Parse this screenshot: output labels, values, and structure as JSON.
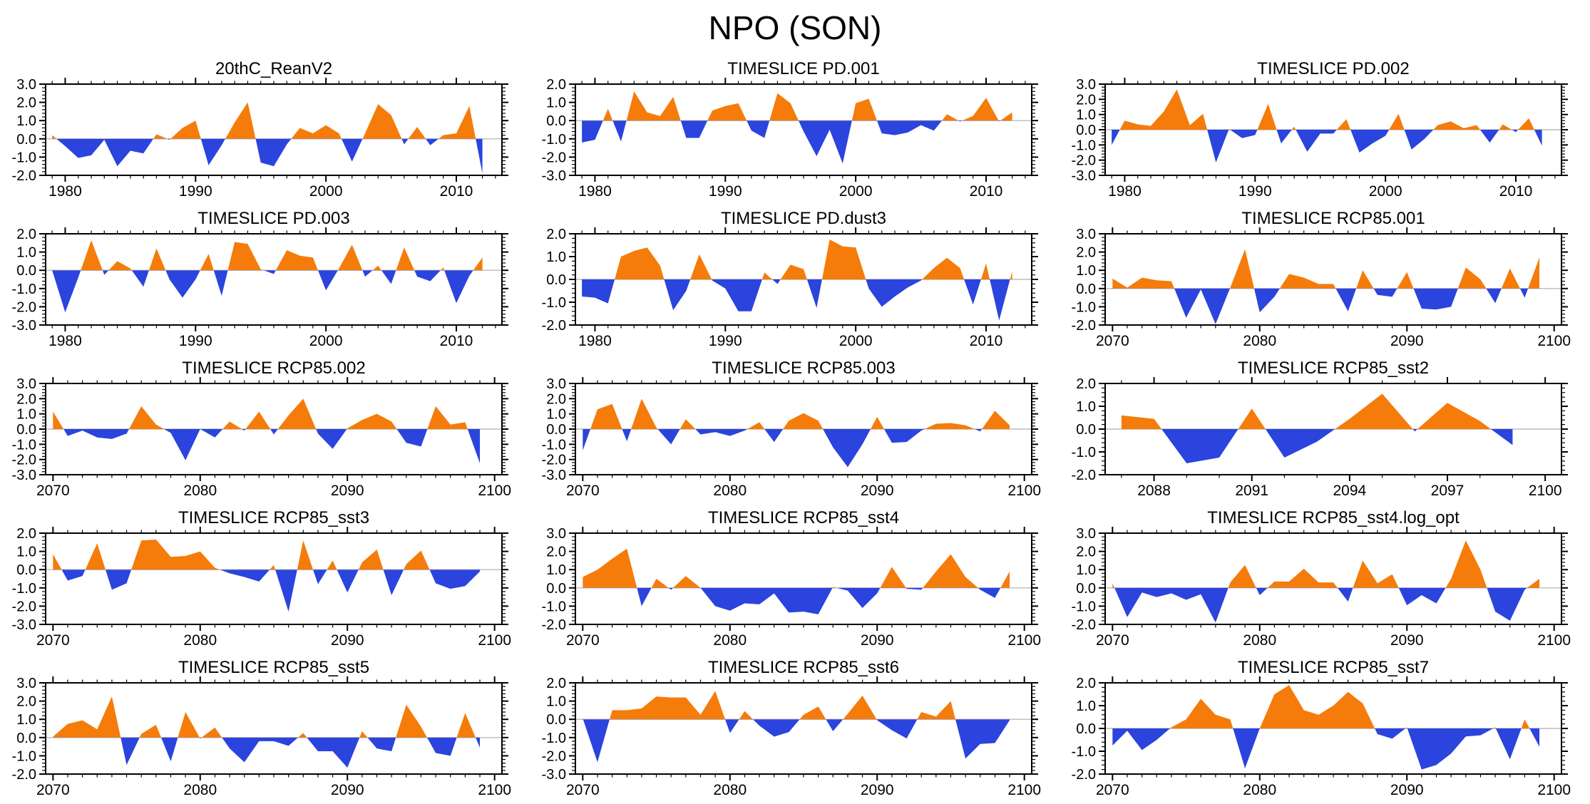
{
  "page_title": "NPO (SON)",
  "colors": {
    "positive_fill": "#F57C0A",
    "negative_fill": "#2A44DD",
    "zero_line": "#BBBBBB",
    "axis": "#000000"
  },
  "chart_data": [
    {
      "type": "area",
      "title": "20thC_ReanV2",
      "x_start": 1979,
      "x_step": 1,
      "xlim": [
        1978.5,
        2013.5
      ],
      "xticks": [
        1980,
        1990,
        2000,
        2010
      ],
      "ylim": [
        -2,
        3
      ],
      "ytick_step": 1,
      "y_minor_step": 0.2,
      "x_minor_step": 1,
      "values": [
        0.2,
        -0.4,
        -1.05,
        -0.9,
        -0.05,
        -1.5,
        -0.65,
        -0.8,
        0.25,
        -0.05,
        0.6,
        1.0,
        -1.45,
        -0.35,
        0.9,
        2.0,
        -1.3,
        -1.5,
        -0.3,
        0.6,
        0.3,
        0.75,
        0.3,
        -1.25,
        0.3,
        1.9,
        1.3,
        -0.3,
        0.65,
        -0.35,
        0.2,
        0.3,
        1.8,
        -1.9
      ]
    },
    {
      "type": "area",
      "title": "TIMESLICE PD.001",
      "x_start": 1979,
      "x_step": 1,
      "xlim": [
        1978.5,
        2013.5
      ],
      "xticks": [
        1980,
        1990,
        2000,
        2010
      ],
      "ylim": [
        -3,
        2
      ],
      "ytick_step": 1,
      "y_minor_step": 0.2,
      "x_minor_step": 1,
      "values": [
        -1.2,
        -1.05,
        0.65,
        -1.15,
        1.6,
        0.45,
        0.25,
        1.3,
        -0.95,
        -0.95,
        0.55,
        0.8,
        0.95,
        -0.55,
        -0.95,
        1.5,
        0.95,
        -0.6,
        -1.95,
        -0.5,
        -2.35,
        0.95,
        1.2,
        -0.7,
        -0.8,
        -0.65,
        -0.25,
        -0.55,
        0.35,
        -0.05,
        0.25,
        1.25,
        -0.05,
        0.45
      ]
    },
    {
      "type": "area",
      "title": "TIMESLICE PD.002",
      "x_start": 1979,
      "x_step": 1,
      "xlim": [
        1978.5,
        2013.5
      ],
      "xticks": [
        1980,
        1990,
        2000,
        2010
      ],
      "ylim": [
        -3,
        3
      ],
      "ytick_step": 1,
      "y_minor_step": 0.2,
      "x_minor_step": 1,
      "values": [
        -1.0,
        0.6,
        0.35,
        0.25,
        1.2,
        2.65,
        0.3,
        1.05,
        -2.15,
        0.05,
        -0.55,
        -0.35,
        1.7,
        -0.9,
        0.2,
        -1.45,
        -0.25,
        -0.25,
        0.7,
        -1.5,
        -0.9,
        -0.4,
        1.05,
        -1.3,
        -0.6,
        0.3,
        0.55,
        0.1,
        0.3,
        -0.85,
        0.35,
        -0.15,
        0.75,
        -1.05
      ]
    },
    {
      "type": "area",
      "title": "TIMESLICE PD.003",
      "x_start": 1979,
      "x_step": 1,
      "xlim": [
        1978.5,
        2013.5
      ],
      "xticks": [
        1980,
        1990,
        2000,
        2010
      ],
      "ylim": [
        -3,
        2
      ],
      "ytick_step": 1,
      "y_minor_step": 0.2,
      "x_minor_step": 1,
      "values": [
        0.0,
        -2.3,
        -0.4,
        1.65,
        -0.25,
        0.5,
        0.1,
        -0.9,
        1.2,
        -0.5,
        -1.5,
        -0.5,
        0.9,
        -1.4,
        1.55,
        1.45,
        0.05,
        -0.2,
        1.1,
        0.8,
        0.7,
        -1.1,
        0.1,
        1.4,
        -0.35,
        0.25,
        -0.75,
        1.25,
        -0.35,
        -0.6,
        0.15,
        -1.8,
        -0.3,
        0.7
      ]
    },
    {
      "type": "area",
      "title": "TIMESLICE PD.dust3",
      "x_start": 1979,
      "x_step": 1,
      "xlim": [
        1978.5,
        2013.5
      ],
      "xticks": [
        1980,
        1990,
        2000,
        2010
      ],
      "ylim": [
        -2,
        2
      ],
      "ytick_step": 1,
      "y_minor_step": 0.2,
      "x_minor_step": 1,
      "values": [
        -0.75,
        -0.8,
        -1.05,
        1.0,
        1.25,
        1.4,
        0.6,
        -1.35,
        -0.5,
        1.1,
        -0.05,
        -0.4,
        -1.4,
        -1.4,
        0.3,
        -0.2,
        0.65,
        0.45,
        -1.25,
        1.75,
        1.45,
        1.4,
        -0.4,
        -1.2,
        -0.75,
        -0.35,
        -0.05,
        0.5,
        0.95,
        0.5,
        -1.1,
        0.7,
        -1.8,
        0.35
      ]
    },
    {
      "type": "area",
      "title": "TIMESLICE RCP85.001",
      "x_start": 2070,
      "x_step": 1,
      "xlim": [
        2069.5,
        2100.5
      ],
      "xticks": [
        2070,
        2080,
        2090,
        2100
      ],
      "ylim": [
        -2,
        3
      ],
      "ytick_step": 1,
      "y_minor_step": 0.2,
      "x_minor_step": 1,
      "values": [
        0.55,
        0.05,
        0.6,
        0.45,
        0.4,
        -1.6,
        -0.05,
        -1.95,
        0.05,
        2.15,
        -1.3,
        -0.45,
        0.8,
        0.6,
        0.25,
        0.25,
        -1.25,
        1.0,
        -0.35,
        -0.45,
        0.9,
        -1.1,
        -1.15,
        -1.0,
        1.15,
        0.5,
        -0.8,
        1.1,
        -0.5,
        1.7
      ]
    },
    {
      "type": "area",
      "title": "TIMESLICE RCP85.002",
      "x_start": 2070,
      "x_step": 1,
      "xlim": [
        2069.5,
        2100.5
      ],
      "xticks": [
        2070,
        2080,
        2090,
        2100
      ],
      "ylim": [
        -3,
        3
      ],
      "ytick_step": 1,
      "y_minor_step": 0.2,
      "x_minor_step": 1,
      "values": [
        1.15,
        -0.45,
        -0.1,
        -0.55,
        -0.65,
        -0.3,
        1.5,
        0.3,
        -0.25,
        -2.05,
        0.0,
        -0.55,
        0.5,
        -0.1,
        1.15,
        -0.35,
        0.9,
        2.0,
        -0.3,
        -1.3,
        0.05,
        0.6,
        1.0,
        0.5,
        -0.9,
        -1.15,
        1.5,
        0.3,
        0.45,
        -2.25
      ]
    },
    {
      "type": "area",
      "title": "TIMESLICE RCP85.003",
      "x_start": 2070,
      "x_step": 1,
      "xlim": [
        2069.5,
        2100.5
      ],
      "xticks": [
        2070,
        2080,
        2090,
        2100
      ],
      "ylim": [
        -3,
        3
      ],
      "ytick_step": 1,
      "y_minor_step": 0.2,
      "x_minor_step": 1,
      "values": [
        -1.4,
        1.3,
        1.65,
        -0.8,
        2.0,
        0.1,
        -1.0,
        0.65,
        -0.35,
        -0.2,
        -0.45,
        -0.1,
        0.45,
        -0.85,
        0.55,
        1.05,
        0.55,
        -1.2,
        -2.5,
        -1.0,
        0.8,
        -0.9,
        -0.85,
        -0.1,
        0.35,
        0.4,
        0.25,
        -0.15,
        1.2,
        0.25
      ]
    },
    {
      "type": "area",
      "title": "TIMESLICE RCP85_sst2",
      "x_start": 2087,
      "x_step": 1,
      "xlim": [
        2086.5,
        2100.5
      ],
      "xticks": [
        2088,
        2091,
        2094,
        2097,
        2100
      ],
      "ylim": [
        -2,
        2
      ],
      "ytick_step": 1,
      "y_minor_step": 0.2,
      "x_minor_step": 1,
      "values": [
        0.6,
        0.45,
        -1.5,
        -1.25,
        0.9,
        -1.25,
        -0.55,
        0.45,
        1.55,
        -0.1,
        1.15,
        0.35,
        -0.7
      ]
    },
    {
      "type": "area",
      "title": "TIMESLICE RCP85_sst3",
      "x_start": 2070,
      "x_step": 1,
      "xlim": [
        2069.5,
        2100.5
      ],
      "xticks": [
        2070,
        2080,
        2090,
        2100
      ],
      "ylim": [
        -3,
        2
      ],
      "ytick_step": 1,
      "y_minor_step": 0.2,
      "x_minor_step": 1,
      "values": [
        0.85,
        -0.6,
        -0.35,
        1.45,
        -1.1,
        -0.75,
        1.6,
        1.65,
        0.7,
        0.75,
        1.0,
        0.1,
        -0.2,
        -0.4,
        -0.65,
        0.25,
        -2.3,
        1.6,
        -0.8,
        0.5,
        -1.25,
        0.4,
        1.1,
        -1.4,
        0.3,
        1.05,
        -0.75,
        -1.05,
        -0.9,
        -0.1
      ]
    },
    {
      "type": "area",
      "title": "TIMESLICE RCP85_sst4",
      "x_start": 2070,
      "x_step": 1,
      "xlim": [
        2069.5,
        2100.5
      ],
      "xticks": [
        2070,
        2080,
        2090,
        2100
      ],
      "ylim": [
        -2,
        3
      ],
      "ytick_step": 1,
      "y_minor_step": 0.2,
      "x_minor_step": 1,
      "values": [
        0.6,
        1.0,
        1.6,
        2.15,
        -1.0,
        0.5,
        -0.1,
        0.65,
        0.0,
        -1.0,
        -1.25,
        -0.85,
        -0.9,
        -0.3,
        -1.35,
        -1.3,
        -1.45,
        0.05,
        -0.15,
        -1.1,
        -0.3,
        1.15,
        -0.05,
        -0.1,
        0.9,
        1.85,
        0.6,
        -0.1,
        -0.55,
        0.9
      ]
    },
    {
      "type": "area",
      "title": "TIMESLICE RCP85_sst4.log_opt",
      "x_start": 2070,
      "x_step": 1,
      "xlim": [
        2069.5,
        2100.5
      ],
      "xticks": [
        2070,
        2080,
        2090,
        2100
      ],
      "ylim": [
        -2,
        3
      ],
      "ytick_step": 1,
      "y_minor_step": 0.2,
      "x_minor_step": 1,
      "values": [
        0.25,
        -1.6,
        -0.25,
        -0.5,
        -0.3,
        -0.65,
        -0.35,
        -1.9,
        0.3,
        1.25,
        -0.4,
        0.35,
        0.35,
        1.05,
        0.3,
        0.3,
        -0.75,
        1.5,
        0.25,
        0.75,
        -0.95,
        -0.4,
        -0.85,
        0.5,
        2.6,
        1.0,
        -1.3,
        -1.8,
        -0.1,
        0.5
      ]
    },
    {
      "type": "area",
      "title": "TIMESLICE RCP85_sst5",
      "x_start": 2070,
      "x_step": 1,
      "xlim": [
        2069.5,
        2100.5
      ],
      "xticks": [
        2070,
        2080,
        2090,
        2100
      ],
      "ylim": [
        -2,
        3
      ],
      "ytick_step": 1,
      "y_minor_step": 0.2,
      "x_minor_step": 1,
      "values": [
        0.05,
        0.75,
        0.95,
        0.45,
        2.25,
        -1.5,
        0.2,
        0.7,
        -1.3,
        1.4,
        -0.05,
        0.55,
        -0.6,
        -1.35,
        -0.2,
        -0.2,
        -0.45,
        0.25,
        -0.75,
        -0.75,
        -1.65,
        0.35,
        -0.6,
        -0.75,
        1.8,
        0.6,
        -0.85,
        -1.0,
        1.35,
        -0.55
      ]
    },
    {
      "type": "area",
      "title": "TIMESLICE RCP85_sst6",
      "x_start": 2070,
      "x_step": 1,
      "xlim": [
        2069.5,
        2100.5
      ],
      "xticks": [
        2070,
        2080,
        2090,
        2100
      ],
      "ylim": [
        -3,
        2
      ],
      "ytick_step": 1,
      "y_minor_step": 0.2,
      "x_minor_step": 1,
      "values": [
        0.05,
        -2.35,
        0.5,
        0.5,
        0.6,
        1.25,
        1.2,
        1.2,
        0.25,
        1.55,
        -0.75,
        0.45,
        -0.35,
        -0.95,
        -0.7,
        0.25,
        0.7,
        -0.65,
        0.3,
        1.3,
        -0.05,
        -0.6,
        -1.05,
        0.4,
        0.15,
        1.0,
        -2.15,
        -1.35,
        -1.3,
        -0.05
      ]
    },
    {
      "type": "area",
      "title": "TIMESLICE RCP85_sst7",
      "x_start": 2070,
      "x_step": 1,
      "xlim": [
        2069.5,
        2100.5
      ],
      "xticks": [
        2070,
        2080,
        2090,
        2100
      ],
      "ylim": [
        -2,
        2
      ],
      "ytick_step": 1,
      "y_minor_step": 0.2,
      "x_minor_step": 1,
      "values": [
        -0.75,
        -0.1,
        -0.95,
        -0.5,
        0.05,
        0.4,
        1.3,
        0.6,
        0.4,
        -1.75,
        0.0,
        1.5,
        1.9,
        0.8,
        0.6,
        1.0,
        1.6,
        1.1,
        -0.25,
        -0.45,
        0.05,
        -1.8,
        -1.6,
        -1.1,
        -0.35,
        -0.3,
        0.05,
        -1.35,
        0.4,
        -0.8
      ]
    }
  ]
}
